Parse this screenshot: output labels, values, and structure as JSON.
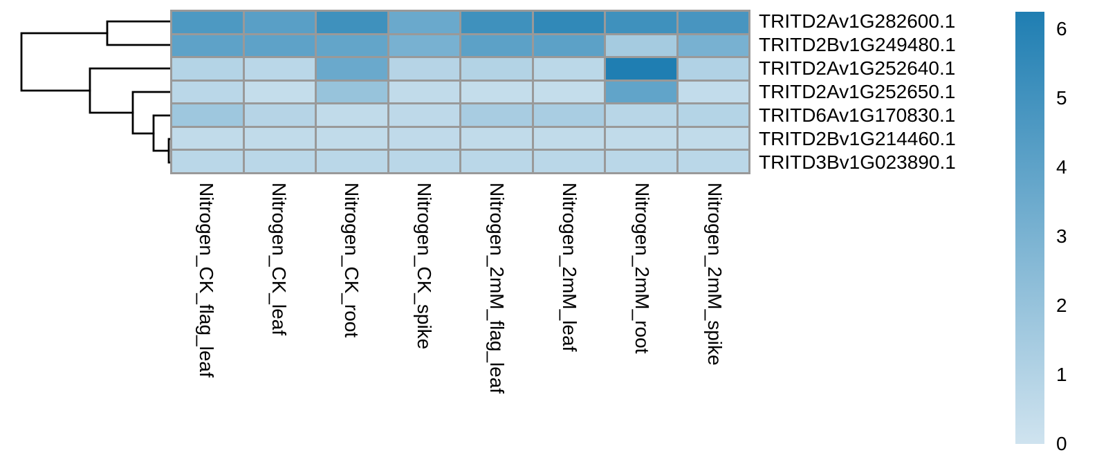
{
  "chart_data": {
    "type": "heatmap",
    "rows": [
      "TRITD2Av1G282600.1",
      "TRITD2Bv1G249480.1",
      "TRITD2Av1G252640.1",
      "TRITD2Av1G252650.1",
      "TRITD6Av1G170830.1",
      "TRITD2Bv1G214460.1",
      "TRITD3Bv1G023890.1"
    ],
    "columns": [
      "Nitrogen_CK_flag_leaf",
      "Nitrogen_CK_leaf",
      "Nitrogen_CK_root",
      "Nitrogen_CK_spike",
      "Nitrogen_2mM_flag_leaf",
      "Nitrogen_2mM_leaf",
      "Nitrogen_2mM_root",
      "Nitrogen_2mM_spike"
    ],
    "values": [
      [
        4.6,
        4.2,
        5.1,
        3.6,
        5.1,
        5.6,
        5.1,
        4.8
      ],
      [
        4.0,
        4.0,
        3.85,
        3.1,
        4.1,
        4.1,
        1.5,
        3.1
      ],
      [
        0.95,
        0.75,
        3.6,
        0.9,
        1.0,
        0.7,
        6.25,
        1.05
      ],
      [
        0.75,
        0.4,
        2.0,
        0.5,
        0.4,
        0.4,
        3.9,
        0.45
      ],
      [
        1.75,
        0.9,
        0.5,
        0.6,
        1.4,
        1.35,
        0.8,
        0.95
      ],
      [
        0.5,
        0.5,
        0.5,
        0.55,
        0.5,
        0.5,
        0.5,
        0.5
      ],
      [
        0.75,
        0.75,
        0.75,
        0.75,
        0.75,
        0.75,
        0.75,
        0.75
      ]
    ],
    "vmin": 0,
    "vmax": 6.25,
    "colormap": {
      "low": "#cfe3ef",
      "high": "#1f7eb2"
    },
    "grid_color": "#999999",
    "background": "#ffffff",
    "row_labels_position": "right",
    "col_labels_rotation": 90,
    "colorbar": {
      "position": "right",
      "ticks": [
        {
          "label": "6",
          "value": 6
        },
        {
          "label": "5",
          "value": 5
        },
        {
          "label": "4",
          "value": 4
        },
        {
          "label": "3",
          "value": 3
        },
        {
          "label": "2",
          "value": 2
        },
        {
          "label": "1",
          "value": 1
        },
        {
          "label": "0",
          "value": 0
        }
      ]
    },
    "dendrogram": {
      "stroke": "#000000",
      "stroke_width": 2.8,
      "paths": [
        "M246,31 H155 V65 H246",
        "M155,48 H31 V131 H130",
        "M246,99 H130 V163 H192",
        "M246,133 H192 V193 H222",
        "M246,167 H222 V218 H244",
        "M246,201 H244 V235 H246"
      ]
    }
  }
}
